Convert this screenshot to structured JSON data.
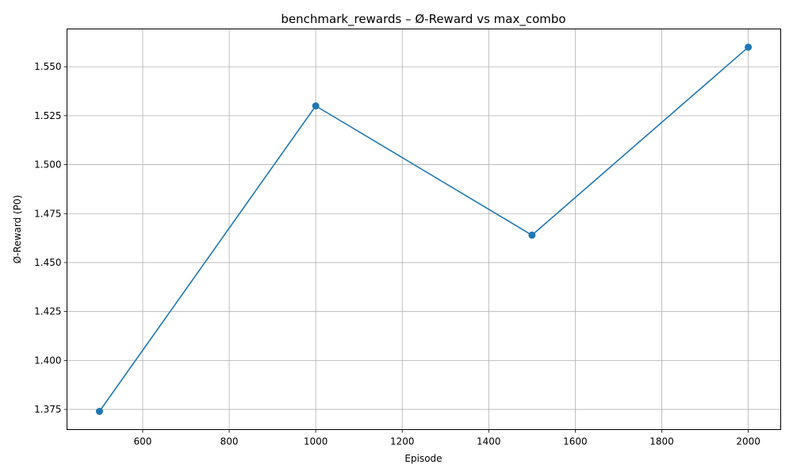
{
  "chart_data": {
    "type": "line",
    "title": "benchmark_rewards – Ø-Reward vs max_combo",
    "xlabel": "Episode",
    "ylabel": "Ø-Reward (P0)",
    "x": [
      500,
      1000,
      1500,
      2000
    ],
    "series": [
      {
        "values": [
          1.374,
          1.53,
          1.464,
          1.56
        ]
      }
    ],
    "xlim": [
      425,
      2075
    ],
    "ylim": [
      1.3647,
      1.5693
    ],
    "xticks": [
      600,
      800,
      1000,
      1200,
      1400,
      1600,
      1800,
      2000
    ],
    "xtick_labels": [
      "600",
      "800",
      "1000",
      "1200",
      "1400",
      "1600",
      "1800",
      "2000"
    ],
    "yticks": [
      1.375,
      1.4,
      1.425,
      1.45,
      1.475,
      1.5,
      1.525,
      1.55
    ],
    "ytick_labels": [
      "1.375",
      "1.400",
      "1.425",
      "1.450",
      "1.475",
      "1.500",
      "1.525",
      "1.550"
    ],
    "grid": true,
    "markers": true,
    "line_color": "#1f77b4",
    "grid_color": "#b0b0b0"
  }
}
